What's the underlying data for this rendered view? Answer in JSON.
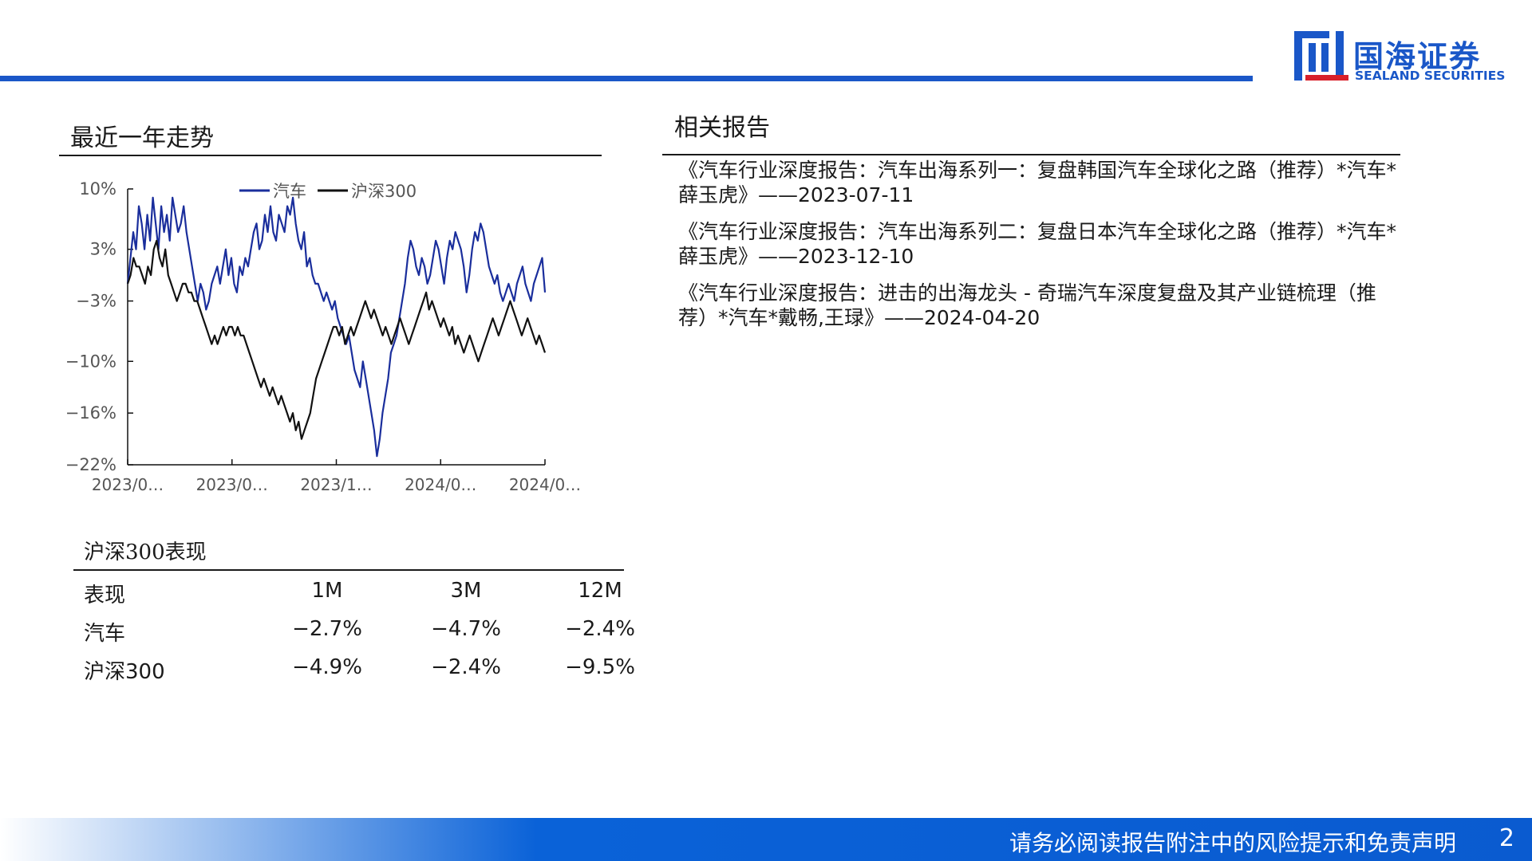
{
  "header": {
    "brand_cn": "国海证券",
    "brand_en": "SEALAND SECURITIES",
    "colors": {
      "accent": "#1a57c8"
    }
  },
  "trend_section": {
    "title": "最近一年走势"
  },
  "chart_data": {
    "type": "line",
    "y_ticks": [
      "10%",
      "3%",
      "−3%",
      "−10%",
      "−16%",
      "−22%"
    ],
    "y_tick_values": [
      10,
      3,
      -3,
      -10,
      -16,
      -22
    ],
    "ylim": [
      -22,
      10
    ],
    "x_ticks": [
      "2023/0…",
      "2023/0…",
      "2023/1…",
      "2024/0…",
      "2024/0…"
    ],
    "legend_position": "top",
    "series": [
      {
        "name": "汽车",
        "color": "#1a2e9c",
        "values": [
          -1,
          2,
          5,
          3,
          8,
          6,
          3,
          7,
          4,
          9,
          6,
          3,
          8,
          5,
          7,
          4,
          9,
          7,
          5,
          6,
          8,
          5,
          3,
          1,
          -1,
          -3,
          -1,
          -2,
          -4,
          -3,
          -1,
          0,
          1,
          -1,
          1,
          3,
          0,
          2,
          -1,
          -2,
          1,
          0,
          2,
          1,
          3,
          5,
          6,
          3,
          4,
          7,
          5,
          8,
          5,
          4,
          7,
          6,
          5,
          8,
          7,
          9,
          6,
          4,
          3,
          5,
          1,
          2,
          0,
          -1,
          -1,
          -2,
          -3,
          -2,
          -3,
          -4,
          -3,
          -5,
          -6,
          -7,
          -8,
          -7,
          -9,
          -11,
          -12,
          -13,
          -10,
          -12,
          -14,
          -16,
          -18,
          -21,
          -19,
          -16,
          -14,
          -12,
          -9,
          -8,
          -7,
          -5,
          -3,
          -1,
          2,
          4,
          3,
          1,
          0,
          2,
          1,
          -1,
          0,
          2,
          4,
          3,
          1,
          -1,
          2,
          4,
          3,
          5,
          4,
          3,
          1,
          -2,
          0,
          3,
          5,
          4,
          6,
          5,
          3,
          1,
          0,
          -1,
          0,
          -2,
          -3,
          -2,
          -1,
          -2,
          -3,
          -1,
          0,
          1,
          -1,
          -2,
          -3,
          -1,
          0,
          1,
          2,
          -2
        ]
      },
      {
        "name": "沪深300",
        "color": "#111111",
        "values": [
          -1,
          0,
          2,
          1,
          1,
          0,
          -1,
          1,
          0,
          3,
          4,
          2,
          1,
          3,
          0,
          -1,
          -2,
          -3,
          -2,
          -1,
          -1,
          -2,
          -2,
          -3,
          -3,
          -4,
          -5,
          -6,
          -7,
          -8,
          -7,
          -8,
          -7,
          -6,
          -7,
          -6,
          -6,
          -7,
          -6,
          -7,
          -7,
          -8,
          -9,
          -10,
          -11,
          -12,
          -13,
          -12,
          -13,
          -14,
          -13,
          -14,
          -15,
          -14,
          -15,
          -16,
          -17,
          -16,
          -18,
          -17,
          -19,
          -18,
          -17,
          -16,
          -14,
          -12,
          -11,
          -10,
          -9,
          -8,
          -7,
          -6,
          -6,
          -7,
          -6,
          -8,
          -7,
          -6,
          -7,
          -6,
          -5,
          -4,
          -3,
          -4,
          -5,
          -4,
          -5,
          -6,
          -7,
          -6,
          -7,
          -8,
          -7,
          -6,
          -5,
          -6,
          -7,
          -8,
          -7,
          -6,
          -5,
          -4,
          -3,
          -2,
          -4,
          -3,
          -4,
          -5,
          -6,
          -5,
          -6,
          -7,
          -6,
          -8,
          -7,
          -8,
          -9,
          -8,
          -7,
          -8,
          -9,
          -10,
          -9,
          -8,
          -7,
          -6,
          -5,
          -6,
          -7,
          -6,
          -5,
          -4,
          -3,
          -4,
          -5,
          -6,
          -7,
          -6,
          -5,
          -6,
          -7,
          -8,
          -7,
          -8,
          -9
        ]
      }
    ]
  },
  "related_reports": {
    "title": "相关报告",
    "items": [
      {
        "text": "《汽车行业深度报告：汽车出海系列一：复盘韩国汽车全球化之路（推荐）*汽车*薛玉虎》——2023-07-11"
      },
      {
        "text": "《汽车行业深度报告：汽车出海系列二：复盘日本汽车全球化之路（推荐）*汽车*薛玉虎》——2023-12-10"
      },
      {
        "text": "《汽车行业深度报告：进击的出海龙头 - 奇瑞汽车深度复盘及其产业链梳理（推荐）*汽车*戴畅,王琭》——2024-04-20"
      }
    ]
  },
  "performance": {
    "title": "沪深300表现",
    "header": [
      "表现",
      "1M",
      "3M",
      "12M"
    ],
    "rows": [
      [
        "汽车",
        "−2.7%",
        "−4.7%",
        "−2.4%"
      ],
      [
        "沪深300",
        "−4.9%",
        "−2.4%",
        "−9.5%"
      ]
    ]
  },
  "footer": {
    "disclaimer": "请务必阅读报告附注中的风险提示和免责声明",
    "page_number": "2"
  }
}
